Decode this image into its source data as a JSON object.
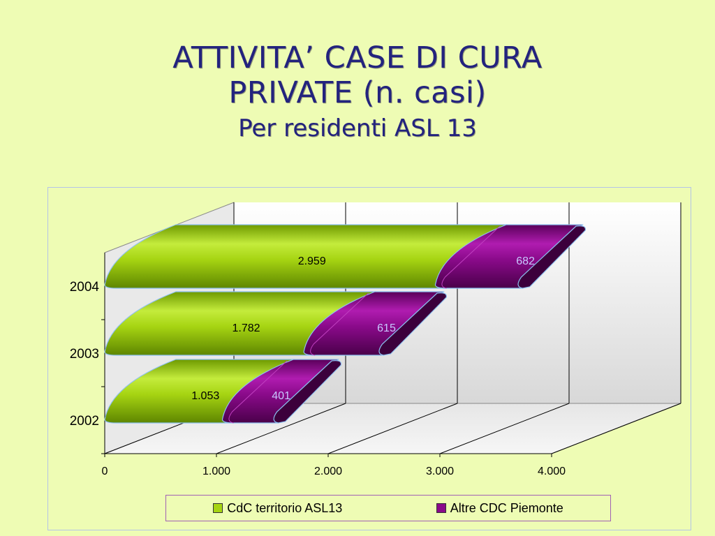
{
  "slide": {
    "title_line1": "ATTIVITA’ CASE DI CURA",
    "title_line2": "PRIVATE (n. casi)",
    "subtitle": "Per residenti ASL 13"
  },
  "colors": {
    "background": "#eefcb4",
    "title": "#23237e",
    "series1": "#a6d412",
    "series2": "#8a0a8a",
    "series2_label": "#c8c8ff"
  },
  "chart_data": {
    "type": "bar",
    "orientation": "horizontal",
    "style": "3d-cylinder-stacked",
    "categories": [
      "2002",
      "2003",
      "2004"
    ],
    "series": [
      {
        "name": "CdC territorio ASL13",
        "values": [
          1053,
          1782,
          2959
        ],
        "labels": [
          "1.053",
          "1.782",
          "2.959"
        ]
      },
      {
        "name": "Altre CDC Piemonte",
        "values": [
          401,
          615,
          682
        ],
        "labels": [
          "401",
          "615",
          "682"
        ]
      }
    ],
    "xlim": [
      0,
      4000
    ],
    "xticks": [
      0,
      1000,
      2000,
      3000,
      4000
    ],
    "xtick_labels": [
      "0",
      "1.000",
      "2.000",
      "3.000",
      "4.000"
    ],
    "grid": true,
    "legend_position": "bottom"
  }
}
